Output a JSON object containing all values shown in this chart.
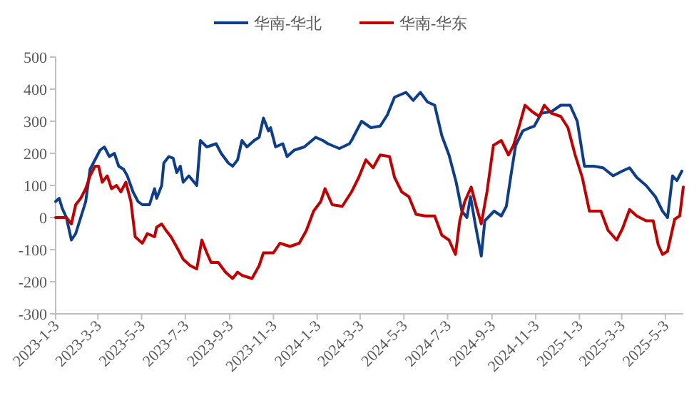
{
  "chart_data": {
    "type": "line",
    "legend": "top",
    "grid": false,
    "line_style": "solid",
    "xlim": [
      "2023-01-03",
      "2025-05-28"
    ],
    "xticks": [
      {
        "value": "2023-01-03",
        "label": "2023-1-3"
      },
      {
        "value": "2023-03-03",
        "label": "2023-3-3"
      },
      {
        "value": "2023-05-03",
        "label": "2023-5-3"
      },
      {
        "value": "2023-07-03",
        "label": "2023-7-3"
      },
      {
        "value": "2023-09-03",
        "label": "2023-9-3"
      },
      {
        "value": "2023-11-03",
        "label": "2023-11-3"
      },
      {
        "value": "2024-01-03",
        "label": "2024-1-3"
      },
      {
        "value": "2024-03-03",
        "label": "2024-3-3"
      },
      {
        "value": "2024-05-03",
        "label": "2024-5-3"
      },
      {
        "value": "2024-07-03",
        "label": "2024-7-3"
      },
      {
        "value": "2024-09-03",
        "label": "2024-9-3"
      },
      {
        "value": "2024-11-03",
        "label": "2024-11-3"
      },
      {
        "value": "2025-01-03",
        "label": "2025-1-3"
      },
      {
        "value": "2025-03-03",
        "label": "2025-3-3"
      },
      {
        "value": "2025-05-03",
        "label": "2025-5-3"
      }
    ],
    "ylim": [
      -300,
      500
    ],
    "yticks": [
      -300,
      -200,
      -100,
      0,
      100,
      200,
      300,
      400,
      500
    ],
    "series": [
      {
        "name": "华南-华北",
        "color": "#0e3e8a",
        "x": [
          "2023-01-03",
          "2023-01-08",
          "2023-01-12",
          "2023-01-18",
          "2023-01-25",
          "2023-01-31",
          "2023-02-07",
          "2023-02-14",
          "2023-02-20",
          "2023-02-27",
          "2023-03-06",
          "2023-03-12",
          "2023-03-19",
          "2023-03-26",
          "2023-04-01",
          "2023-04-08",
          "2023-04-13",
          "2023-04-21",
          "2023-04-28",
          "2023-05-04",
          "2023-05-14",
          "2023-05-21",
          "2023-05-24",
          "2023-05-31",
          "2023-06-03",
          "2023-06-10",
          "2023-06-16",
          "2023-06-21",
          "2023-06-26",
          "2023-06-30",
          "2023-07-08",
          "2023-07-19",
          "2023-07-24",
          "2023-08-02",
          "2023-08-15",
          "2023-08-22",
          "2023-09-01",
          "2023-09-07",
          "2023-09-14",
          "2023-09-20",
          "2023-09-27",
          "2023-10-07",
          "2023-10-14",
          "2023-10-20",
          "2023-10-27",
          "2023-10-30",
          "2023-11-06",
          "2023-11-16",
          "2023-11-22",
          "2023-12-02",
          "2023-12-16",
          "2024-01-01",
          "2024-01-11",
          "2024-01-18",
          "2024-02-03",
          "2024-02-17",
          "2024-02-20",
          "2024-03-05",
          "2024-03-18",
          "2024-03-31",
          "2024-04-10",
          "2024-04-20",
          "2024-05-06",
          "2024-05-16",
          "2024-05-26",
          "2024-06-05",
          "2024-06-15",
          "2024-06-25",
          "2024-07-05",
          "2024-07-15",
          "2024-07-23",
          "2024-07-30",
          "2024-08-04",
          "2024-08-11",
          "2024-08-19",
          "2024-08-24",
          "2024-09-06",
          "2024-09-16",
          "2024-09-23",
          "2024-09-29",
          "2024-10-06",
          "2024-10-16",
          "2024-10-26",
          "2024-11-01",
          "2024-11-11",
          "2024-11-25",
          "2024-12-08",
          "2024-12-21",
          "2024-12-31",
          "2025-01-10",
          "2025-01-23",
          "2025-02-05",
          "2025-02-19",
          "2025-03-04",
          "2025-03-14",
          "2025-03-24",
          "2025-04-06",
          "2025-04-19",
          "2025-04-29",
          "2025-05-06",
          "2025-05-13",
          "2025-05-19",
          "2025-05-26"
        ],
        "values": [
          50,
          60,
          30,
          0,
          -70,
          -50,
          0,
          50,
          150,
          180,
          210,
          220,
          190,
          200,
          160,
          150,
          130,
          80,
          50,
          40,
          40,
          90,
          60,
          100,
          170,
          190,
          185,
          140,
          160,
          110,
          130,
          100,
          240,
          220,
          230,
          200,
          170,
          160,
          180,
          240,
          220,
          240,
          250,
          310,
          270,
          280,
          220,
          230,
          190,
          210,
          220,
          250,
          240,
          230,
          215,
          230,
          240,
          300,
          280,
          285,
          320,
          375,
          390,
          365,
          390,
          360,
          350,
          255,
          195,
          110,
          20,
          0,
          65,
          -25,
          -120,
          -10,
          20,
          5,
          35,
          125,
          225,
          270,
          280,
          285,
          325,
          330,
          350,
          350,
          300,
          160,
          160,
          155,
          130,
          145,
          155,
          125,
          100,
          65,
          20,
          0,
          130,
          115,
          145
        ]
      },
      {
        "name": "华南-华东",
        "color": "#c00000",
        "x": [
          "2023-01-03",
          "2023-01-08",
          "2023-01-18",
          "2023-01-25",
          "2023-01-31",
          "2023-02-07",
          "2023-02-14",
          "2023-02-20",
          "2023-02-27",
          "2023-03-04",
          "2023-03-09",
          "2023-03-16",
          "2023-03-22",
          "2023-03-29",
          "2023-04-04",
          "2023-04-11",
          "2023-04-18",
          "2023-04-24",
          "2023-05-04",
          "2023-05-11",
          "2023-05-21",
          "2023-05-24",
          "2023-05-31",
          "2023-06-06",
          "2023-06-13",
          "2023-06-23",
          "2023-06-30",
          "2023-07-10",
          "2023-07-19",
          "2023-07-26",
          "2023-08-02",
          "2023-08-08",
          "2023-08-18",
          "2023-08-28",
          "2023-09-07",
          "2023-09-14",
          "2023-09-20",
          "2023-10-04",
          "2023-10-14",
          "2023-10-20",
          "2023-11-03",
          "2023-11-12",
          "2023-11-26",
          "2023-12-09",
          "2023-12-19",
          "2023-12-29",
          "2024-01-08",
          "2024-01-14",
          "2024-01-24",
          "2024-02-07",
          "2024-02-20",
          "2024-03-01",
          "2024-03-11",
          "2024-03-21",
          "2024-03-31",
          "2024-04-13",
          "2024-04-20",
          "2024-04-30",
          "2024-05-10",
          "2024-05-20",
          "2024-06-02",
          "2024-06-15",
          "2024-06-25",
          "2024-07-05",
          "2024-07-14",
          "2024-07-20",
          "2024-07-27",
          "2024-08-05",
          "2024-08-12",
          "2024-08-19",
          "2024-08-27",
          "2024-09-05",
          "2024-09-16",
          "2024-09-26",
          "2024-10-03",
          "2024-10-11",
          "2024-10-19",
          "2024-10-29",
          "2024-11-08",
          "2024-11-15",
          "2024-11-25",
          "2024-12-08",
          "2024-12-18",
          "2024-12-28",
          "2025-01-07",
          "2025-01-17",
          "2025-02-02",
          "2025-02-12",
          "2025-02-24",
          "2025-03-04",
          "2025-03-14",
          "2025-03-24",
          "2025-04-06",
          "2025-04-16",
          "2025-04-23",
          "2025-04-29",
          "2025-05-06",
          "2025-05-16",
          "2025-05-23",
          "2025-05-28"
        ],
        "values": [
          0,
          0,
          0,
          -20,
          40,
          60,
          90,
          130,
          160,
          160,
          110,
          130,
          90,
          100,
          80,
          110,
          50,
          -60,
          -80,
          -50,
          -60,
          -30,
          -20,
          -40,
          -60,
          -100,
          -130,
          -150,
          -160,
          -70,
          -110,
          -140,
          -140,
          -170,
          -190,
          -170,
          -180,
          -190,
          -150,
          -110,
          -110,
          -80,
          -90,
          -80,
          -40,
          20,
          50,
          90,
          40,
          35,
          80,
          125,
          180,
          155,
          195,
          190,
          125,
          80,
          65,
          10,
          5,
          5,
          -55,
          -70,
          -115,
          -10,
          50,
          95,
          35,
          -20,
          80,
          225,
          240,
          195,
          225,
          285,
          350,
          330,
          315,
          350,
          325,
          315,
          280,
          195,
          125,
          20,
          20,
          -40,
          -70,
          -35,
          25,
          5,
          -10,
          -10,
          -85,
          -115,
          -105,
          -5,
          5,
          95
        ]
      }
    ]
  }
}
